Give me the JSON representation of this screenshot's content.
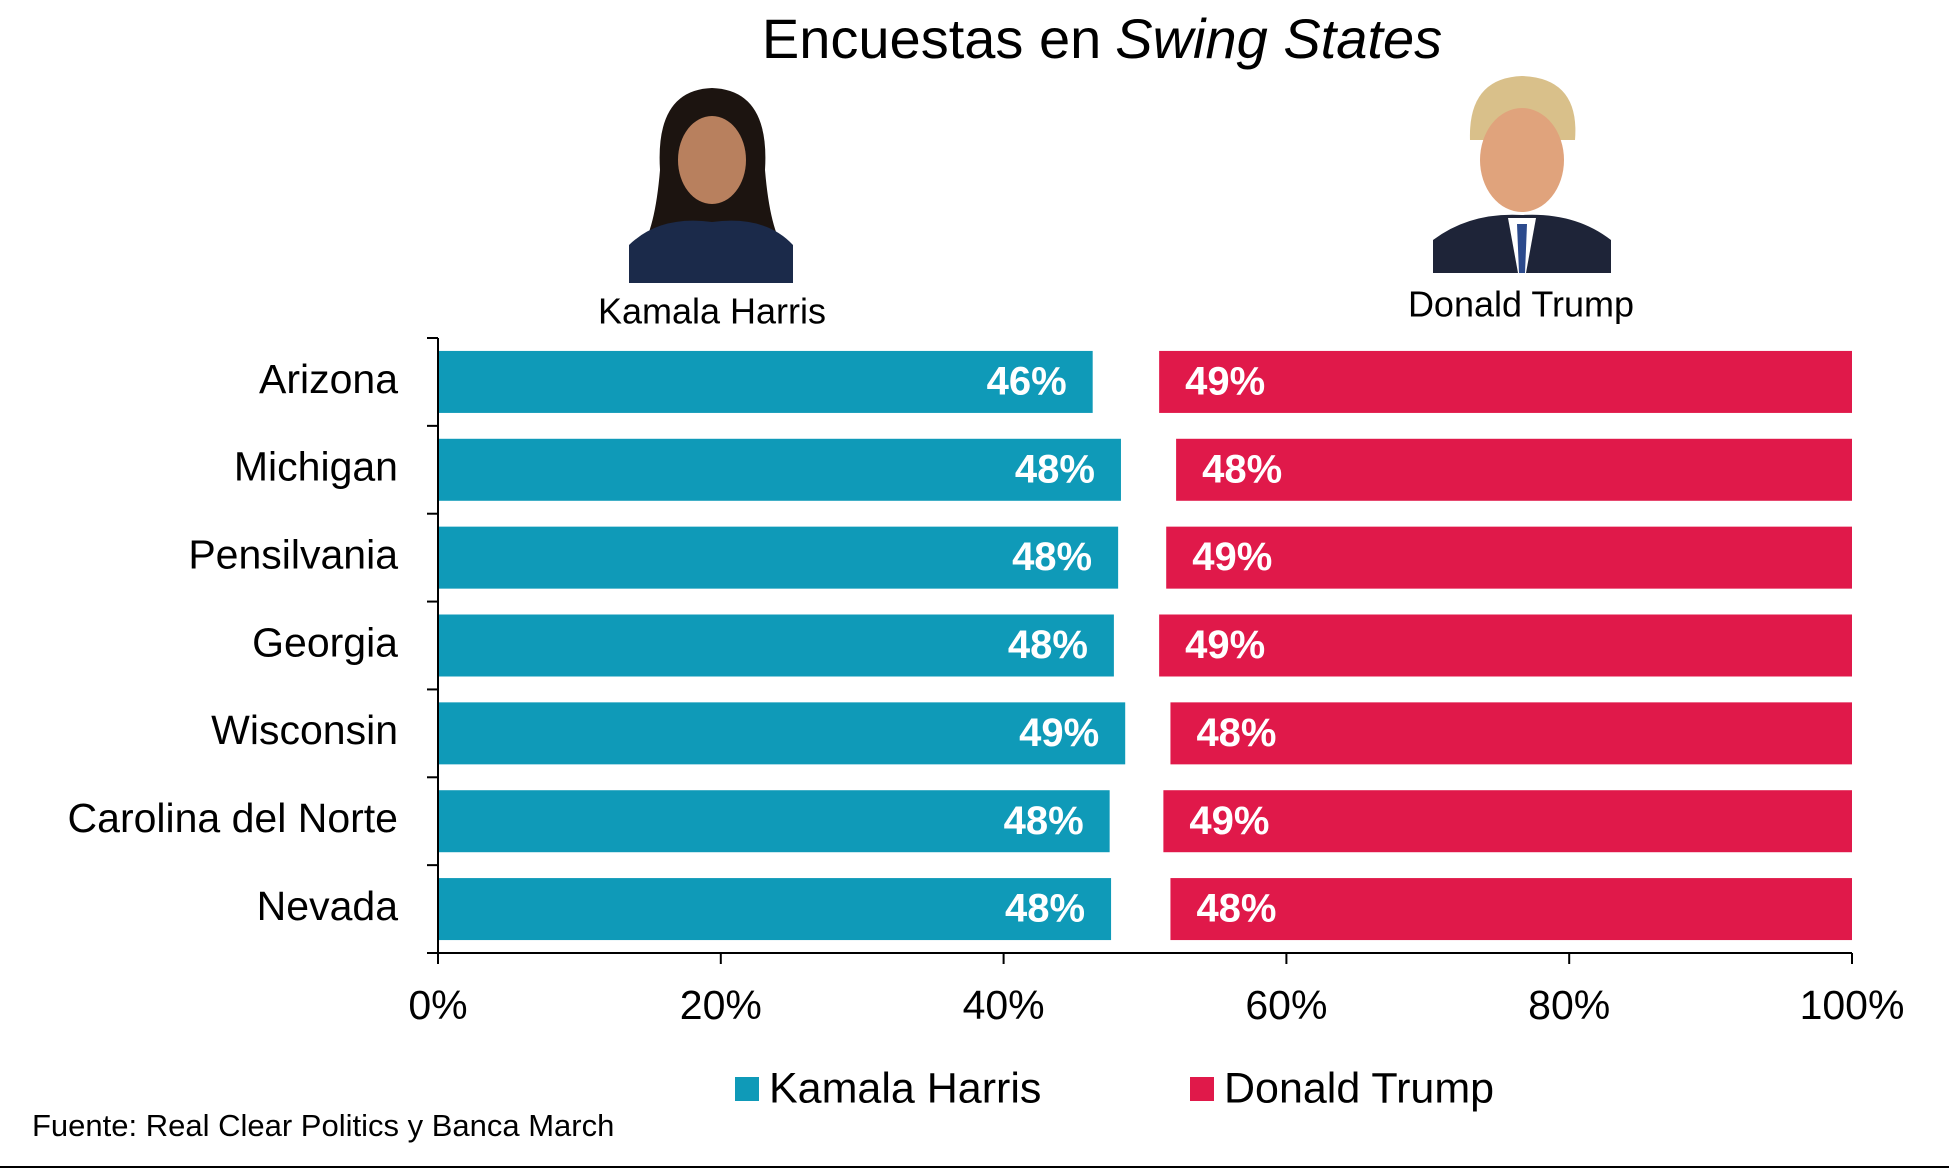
{
  "chart_data": {
    "type": "bar",
    "title_parts": [
      "Encuestas en",
      "Swing States"
    ],
    "categories": [
      "Arizona",
      "Michigan",
      "Pensilvania",
      "Georgia",
      "Wisconsin",
      "Carolina del Norte",
      "Nevada"
    ],
    "series": [
      {
        "name": "Kamala Harris",
        "color": "#0f9ab8",
        "values": [
          46.3,
          48.3,
          48.1,
          47.8,
          48.6,
          47.5,
          47.6
        ],
        "value_labels": [
          "46%",
          "48%",
          "48%",
          "48%",
          "49%",
          "48%",
          "48%"
        ]
      },
      {
        "name": "Donald Trump",
        "color": "#e0194a",
        "values": [
          49.0,
          47.8,
          48.5,
          49.0,
          48.2,
          48.7,
          48.2
        ],
        "value_labels": [
          "49%",
          "48%",
          "49%",
          "49%",
          "48%",
          "49%",
          "48%"
        ]
      }
    ],
    "xlim": [
      0,
      100
    ],
    "xticks": [
      {
        "value": 0,
        "label": "0%"
      },
      {
        "value": 20,
        "label": "20%"
      },
      {
        "value": 40,
        "label": "40%"
      },
      {
        "value": 60,
        "label": "60%"
      },
      {
        "value": 80,
        "label": "80%"
      },
      {
        "value": 100,
        "label": "100%"
      }
    ],
    "legend": "bottom",
    "source": "Fuente: Real Clear Politics y Banca March"
  }
}
